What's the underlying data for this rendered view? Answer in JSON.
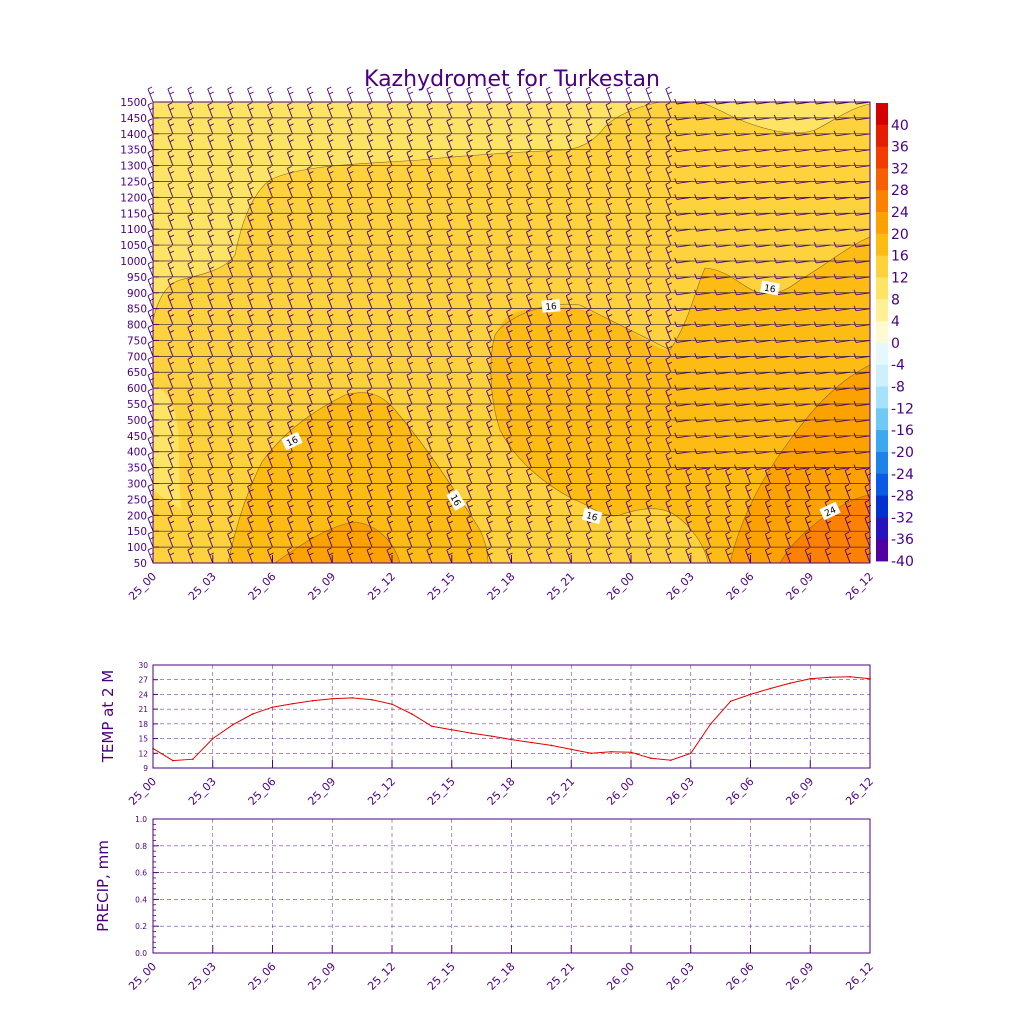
{
  "chart_data": [
    {
      "type": "heatmap",
      "title": "Kazhydromet for Turkestan",
      "xlabel": "",
      "ylabel": "",
      "x_ticks": [
        "25_00",
        "25_03",
        "25_06",
        "25_09",
        "25_12",
        "25_15",
        "25_18",
        "25_21",
        "26_00",
        "26_03",
        "26_06",
        "26_09",
        "26_12"
      ],
      "y_ticks": [
        50,
        100,
        150,
        200,
        250,
        300,
        350,
        400,
        450,
        500,
        550,
        600,
        650,
        700,
        750,
        800,
        850,
        900,
        950,
        1000,
        1050,
        1100,
        1150,
        1200,
        1250,
        1300,
        1350,
        1400,
        1450,
        1500
      ],
      "ylim": [
        50,
        1500
      ],
      "colorbar": {
        "labels": [
          40,
          36,
          32,
          28,
          24,
          20,
          16,
          12,
          8,
          4,
          0,
          -4,
          -8,
          -12,
          -16,
          -20,
          -24,
          -28,
          -32,
          -36,
          -40
        ],
        "colors": [
          "#d40000",
          "#e61e00",
          "#f23c00",
          "#f76000",
          "#fa8200",
          "#fba200",
          "#fcbc14",
          "#fdd23c",
          "#fee464",
          "#fff096",
          "#fffad2",
          "#e6f8ff",
          "#cdf0ff",
          "#a6e3fb",
          "#6fc9f4",
          "#3ca8ef",
          "#1e82eb",
          "#0a5ae6",
          "#0032d2",
          "#2814be",
          "#5000a0"
        ]
      },
      "contour_labels": [
        "16",
        "16",
        "16",
        "16",
        "16",
        "24"
      ],
      "wind_barbs": "wind barbs at every level and time step"
    },
    {
      "type": "line",
      "title": "",
      "ylabel": "TEMP at 2 M",
      "xlabel": "",
      "x_ticks": [
        "25_00",
        "25_03",
        "25_06",
        "25_09",
        "25_12",
        "25_15",
        "25_18",
        "25_21",
        "26_00",
        "26_03",
        "26_06",
        "26_09",
        "26_12"
      ],
      "y_ticks": [
        9,
        12,
        15,
        18,
        21,
        24,
        27,
        30
      ],
      "ylim": [
        9,
        30
      ],
      "x_hours": [
        0,
        1,
        2,
        3,
        4,
        5,
        6,
        7,
        8,
        9,
        10,
        11,
        12,
        13,
        14,
        15,
        16,
        17,
        18,
        19,
        20,
        21,
        22,
        23,
        24,
        25,
        26,
        27,
        28,
        29,
        30,
        31,
        32,
        33,
        34,
        35,
        36
      ],
      "series": [
        {
          "name": "TEMP at 2 M",
          "color": "#e60000",
          "values": [
            13,
            10.5,
            10.8,
            15,
            17.8,
            20,
            21.4,
            22.1,
            22.7,
            23.1,
            23.3,
            22.9,
            22,
            20,
            17.5,
            16.8,
            16.1,
            15.5,
            14.8,
            14.2,
            13.6,
            12.8,
            12,
            12.3,
            12.2,
            11,
            10.6,
            12,
            18,
            22.6,
            24,
            25.2,
            26.3,
            27.2,
            27.5,
            27.6,
            27.2
          ]
        }
      ]
    },
    {
      "type": "line",
      "title": "",
      "ylabel": "PRECIP, mm",
      "xlabel": "",
      "x_ticks": [
        "25_00",
        "25_03",
        "25_06",
        "25_09",
        "25_12",
        "25_15",
        "25_18",
        "25_21",
        "26_00",
        "26_03",
        "26_06",
        "26_09",
        "26_12"
      ],
      "y_ticks": [
        "0.0",
        "0.2",
        "0.4",
        "0.6",
        "0.8",
        "1.0"
      ],
      "ylim": [
        0,
        1
      ],
      "series": []
    }
  ]
}
